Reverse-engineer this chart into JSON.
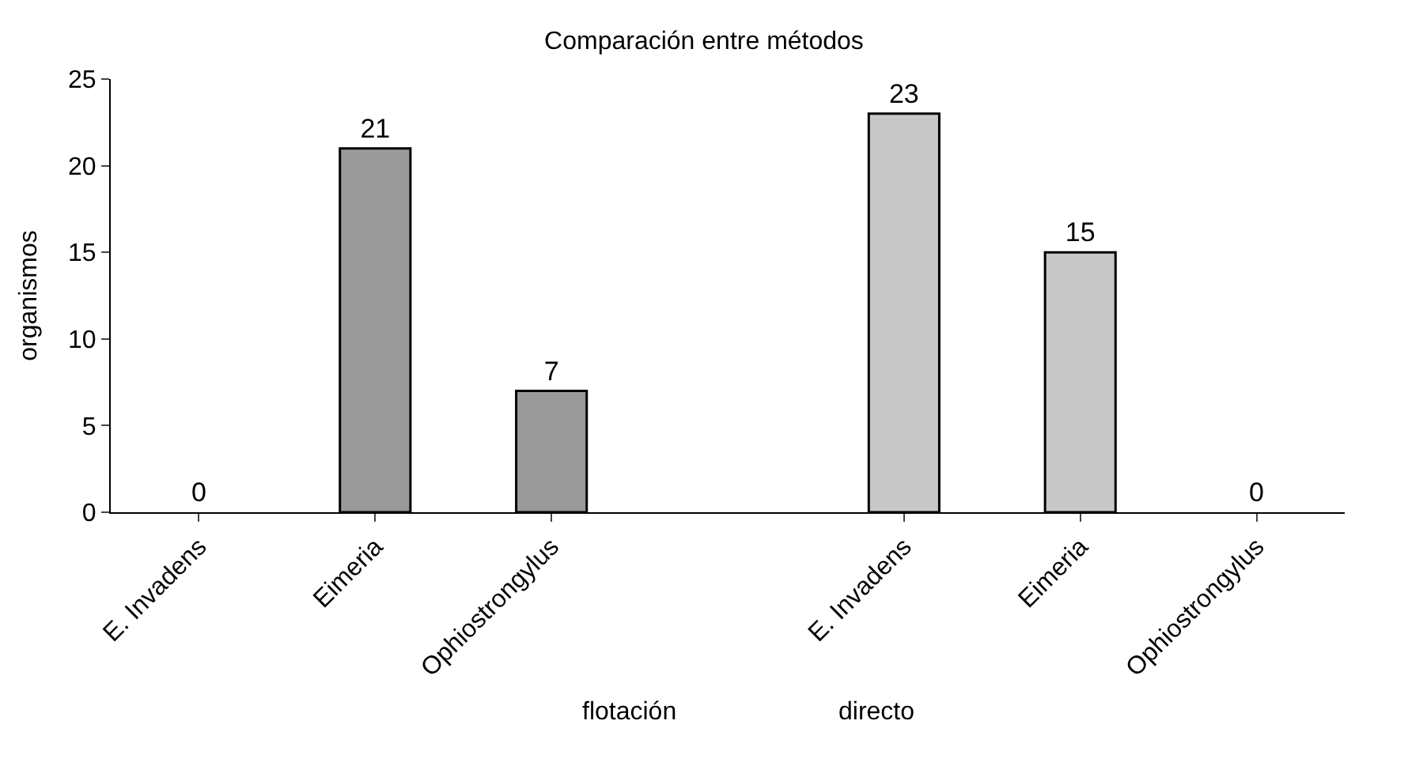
{
  "chart_data": {
    "type": "bar",
    "title": "Comparación entre métodos",
    "ylabel": "organismos",
    "categories": [
      "E. Invadens",
      "Eimeria",
      "Ophiostrongylus",
      null,
      "E. Invadens",
      "Eimeria",
      "Ophiostrongylus"
    ],
    "values": [
      0,
      21,
      7,
      null,
      23,
      15,
      0
    ],
    "colors": [
      "#9a9a9a",
      "#9a9a9a",
      "#9a9a9a",
      "#9a9a9a",
      "#c8c8c8",
      "#c8c8c8",
      "#c8c8c8"
    ],
    "ylim": [
      0,
      25
    ],
    "yticks": [
      0,
      5,
      10,
      15,
      20,
      25
    ],
    "data_labels": true,
    "annotations": [
      "flotación",
      "directo"
    ]
  }
}
